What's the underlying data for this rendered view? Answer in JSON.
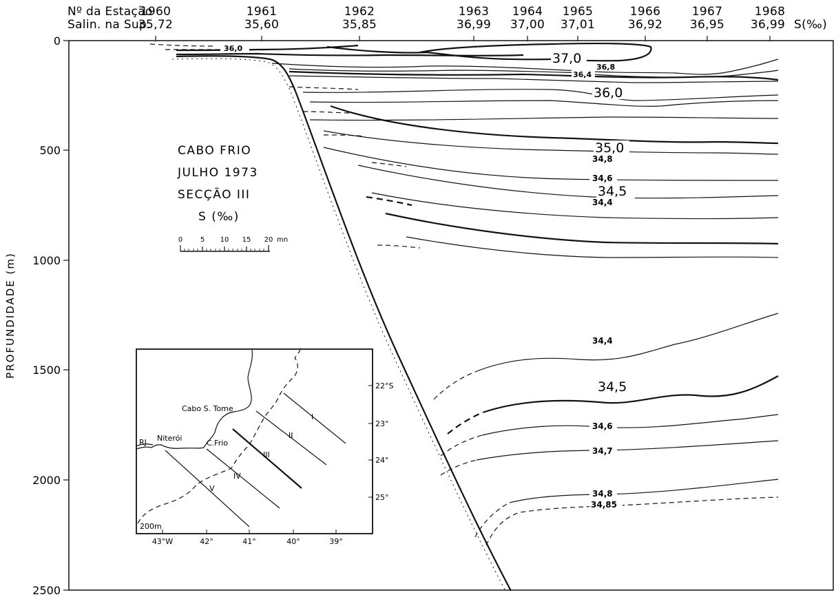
{
  "header": {
    "station_label": "Nº da Estação",
    "salinity_label": "Salin. na Sup.",
    "unit_label": "S(‰)"
  },
  "stations": [
    {
      "id": "1960",
      "salinity": "35,72"
    },
    {
      "id": "1961",
      "salinity": "35,60"
    },
    {
      "id": "1962",
      "salinity": "35,85"
    },
    {
      "id": "1963",
      "salinity": "36,99"
    },
    {
      "id": "1964",
      "salinity": "37,00"
    },
    {
      "id": "1965",
      "salinity": "37,01"
    },
    {
      "id": "1966",
      "salinity": "36,92"
    },
    {
      "id": "1967",
      "salinity": "36,95"
    },
    {
      "id": "1968",
      "salinity": "36,99"
    }
  ],
  "axis": {
    "ylabel": "PROFUNDIDADE   (m)",
    "ticks": [
      "0",
      "500",
      "1000",
      "1500",
      "2000",
      "2500"
    ]
  },
  "title_block": {
    "line1": "CABO FRIO",
    "line2": "JULHO 1973",
    "line3": "SECÇÃO III",
    "line4": "S (‰)"
  },
  "scale_bar": {
    "labels": [
      "0",
      "5",
      "10",
      "15",
      "20"
    ],
    "unit": "mn"
  },
  "isolines": {
    "l360_top": "36,0",
    "l370": "37,0",
    "l368": "36,8",
    "l364": "36,4",
    "l360": "36,0",
    "l350": "35,0",
    "l348": "34,8",
    "l346": "34,6",
    "l345": "34,5",
    "l344": "34,4",
    "l344_deep": "34,4",
    "l345_deep": "34,5",
    "l346_deep": "34,6",
    "l347_deep": "34,7",
    "l348_deep": "34,8",
    "l3485_deep": "34,85"
  },
  "inset_map": {
    "cabo_st": "Cabo S. Tome",
    "rj": "RJ",
    "niteroi": "Niterói",
    "cfrio": "C.Frio",
    "isobath": "200m",
    "sections": [
      "I",
      "II",
      "III",
      "IV",
      "V"
    ],
    "lat_labels": [
      "22°S",
      "23°",
      "24°",
      "25°"
    ],
    "lon_labels": [
      "43°W",
      "42°",
      "41°",
      "40°",
      "39°"
    ]
  }
}
